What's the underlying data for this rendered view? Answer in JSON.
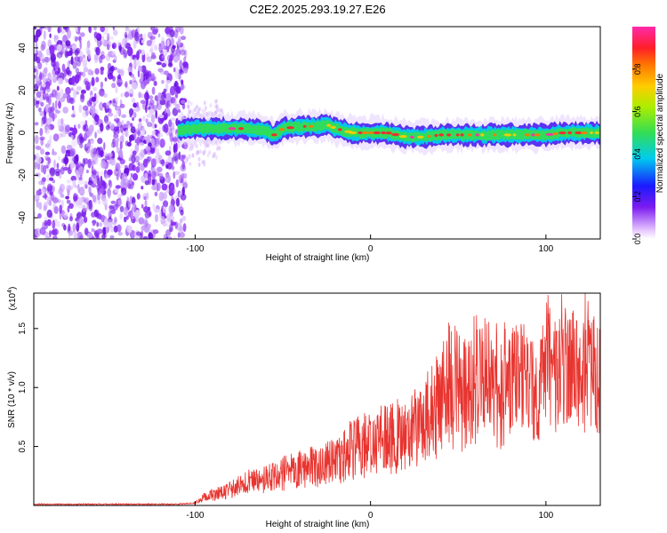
{
  "title": "C2E2.2025.293.19.27.E26",
  "colors": {
    "snr_line": "#e8342f",
    "spectrum_low": "#7b1cf0",
    "spectrum_mid": "#33cc66",
    "spectrum_high": "#e81e2e"
  },
  "chart_data": [
    {
      "type": "heatmap",
      "name": "spectrogram",
      "title": "C2E2.2025.293.19.27.E26",
      "xlabel": "Height of straight line (km)",
      "ylabel": "Frequency (Hz)",
      "xlim": [
        -192,
        131
      ],
      "ylim": [
        -50,
        50
      ],
      "x_ticks": [
        -100,
        0,
        100
      ],
      "x_tick_labels": [
        "-100",
        "0",
        "100"
      ],
      "y_ticks": [
        -40,
        -20,
        0,
        20,
        40
      ],
      "y_tick_labels": [
        "-40",
        "-20",
        "0",
        "20",
        "40"
      ],
      "colorbar": {
        "label": "Normalized spectral amplitude",
        "range": [
          0,
          1
        ],
        "ticks": [
          0.0,
          0.2,
          0.4,
          0.6,
          0.8
        ],
        "tick_labels": [
          "0.0",
          "0.2",
          "0.4",
          "0.6",
          "0.8"
        ]
      },
      "noise_region_x": [
        -192,
        -105
      ],
      "signal_track": {
        "x": [
          -110,
          -100,
          -90,
          -80,
          -70,
          -60,
          -55,
          -50,
          -40,
          -30,
          -25,
          -20,
          -10,
          0,
          10,
          20,
          30,
          40,
          50,
          60,
          70,
          80,
          90,
          100,
          110,
          120,
          131
        ],
        "freq_hz": [
          1,
          2,
          2,
          2,
          2,
          1,
          -1,
          2,
          3,
          3,
          4,
          2,
          0,
          0,
          0,
          -2,
          -2,
          -1,
          -1,
          -1,
          -1,
          -1,
          -1,
          -1,
          0,
          0,
          0
        ]
      }
    },
    {
      "type": "line",
      "name": "snr",
      "xlabel": "Height of straight line (km)",
      "ylabel": "SNR (10 * v/v)",
      "y_multiplier": "(x10",
      "y_multiplier_exp": "4",
      "y_multiplier_close": ")",
      "xlim": [
        -192,
        131
      ],
      "ylim": [
        0,
        1.8
      ],
      "x_ticks": [
        -100,
        0,
        100
      ],
      "x_tick_labels": [
        "-100",
        "0",
        "100"
      ],
      "y_ticks": [
        0.5,
        1.0,
        1.5
      ],
      "y_tick_labels": [
        "0.5",
        "1.0",
        "1.5"
      ],
      "series": [
        {
          "name": "SNR",
          "x": [
            -192,
            -160,
            -130,
            -110,
            -100,
            -95,
            -90,
            -80,
            -70,
            -60,
            -50,
            -40,
            -30,
            -20,
            -10,
            0,
            10,
            20,
            30,
            40,
            45,
            50,
            60,
            70,
            80,
            90,
            95,
            100,
            105,
            110,
            115,
            120,
            125,
            131
          ],
          "values": [
            0.01,
            0.01,
            0.01,
            0.01,
            0.02,
            0.07,
            0.09,
            0.13,
            0.2,
            0.22,
            0.27,
            0.31,
            0.33,
            0.38,
            0.48,
            0.52,
            0.57,
            0.6,
            0.68,
            0.9,
            1.05,
            0.98,
            1.05,
            1.0,
            1.06,
            1.12,
            0.85,
            1.2,
            1.1,
            1.15,
            1.2,
            1.1,
            1.15,
            1.05
          ]
        }
      ]
    }
  ]
}
